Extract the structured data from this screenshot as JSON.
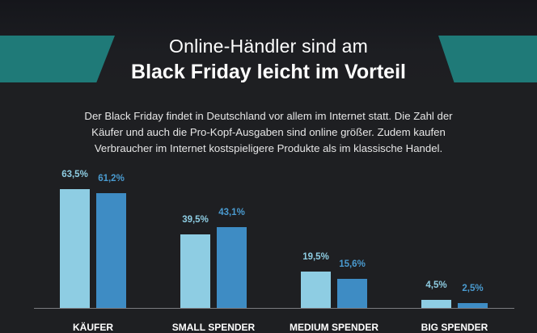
{
  "header": {
    "title_line1": "Online-Händler sind am",
    "title_line2": "Black Friday leicht im Vorteil"
  },
  "intro": {
    "line1": "Der Black Friday findet in Deutschland vor allem im Internet statt. Die Zahl der",
    "line2": "Käufer und auch die Pro-Kopf-Ausgaben sind online größer. Zudem kaufen",
    "line3": "Verbraucher im Internet kostspieligere Produkte als im klassische Handel."
  },
  "colors": {
    "series_light": "#8ecde3",
    "series_dark": "#3e8cc4",
    "banner": "#1f7a78",
    "background": "#1e1f22"
  },
  "chart_data": {
    "type": "bar",
    "categories": [
      "KÄUFER",
      "SMALL SPENDER",
      "MEDIUM SPENDER",
      "BIG SPENDER"
    ],
    "series": [
      {
        "values": [
          63.5,
          39.5,
          19.5,
          4.5
        ],
        "labels": [
          "63,5%",
          "39,5%",
          "19,5%",
          "4,5%"
        ]
      },
      {
        "values": [
          61.2,
          43.1,
          15.6,
          2.5
        ],
        "labels": [
          "61,2%",
          "43,1%",
          "15,6%",
          "2,5%"
        ]
      }
    ],
    "title": "",
    "xlabel": "",
    "ylabel": "",
    "ylim": [
      0,
      63.5
    ],
    "grid": false,
    "legend": "none"
  }
}
